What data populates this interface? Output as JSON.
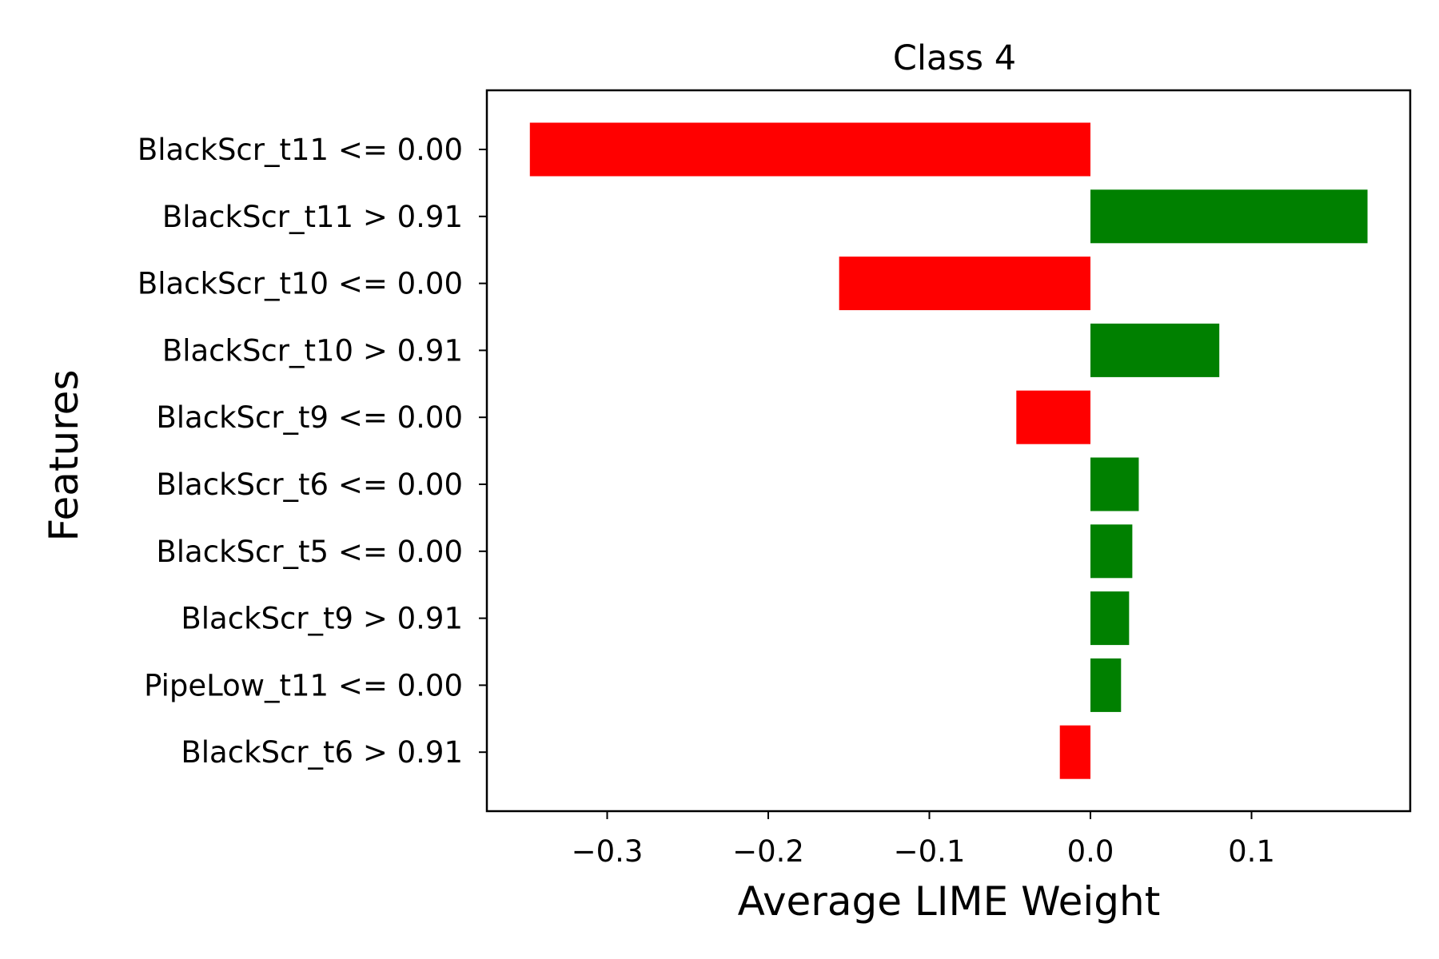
{
  "chart_data": {
    "type": "bar",
    "orientation": "horizontal",
    "title": "Class 4",
    "xlabel": "Average LIME Weight",
    "ylabel": "Features",
    "xlim": [
      -0.375,
      0.197
    ],
    "xticks": [
      -0.3,
      -0.2,
      -0.1,
      0.0,
      0.1
    ],
    "xtick_labels": [
      "−0.3",
      "−0.2",
      "−0.1",
      "0.0",
      "0.1"
    ],
    "grid": false,
    "legend": null,
    "categories": [
      "BlackScr_t11 <= 0.00",
      "BlackScr_t11 > 0.91",
      "BlackScr_t10 <= 0.00",
      "BlackScr_t10 > 0.91",
      "BlackScr_t9 <= 0.00",
      "BlackScr_t6 <= 0.00",
      "BlackScr_t5 <= 0.00",
      "BlackScr_t9 > 0.91",
      "PipeLow_t11 <= 0.00",
      "BlackScr_t6 > 0.91"
    ],
    "values": [
      -0.348,
      0.172,
      -0.156,
      0.08,
      -0.046,
      0.03,
      0.026,
      0.024,
      0.019,
      -0.019
    ],
    "colors": {
      "positive": "#008000",
      "negative": "#ff0000"
    }
  }
}
